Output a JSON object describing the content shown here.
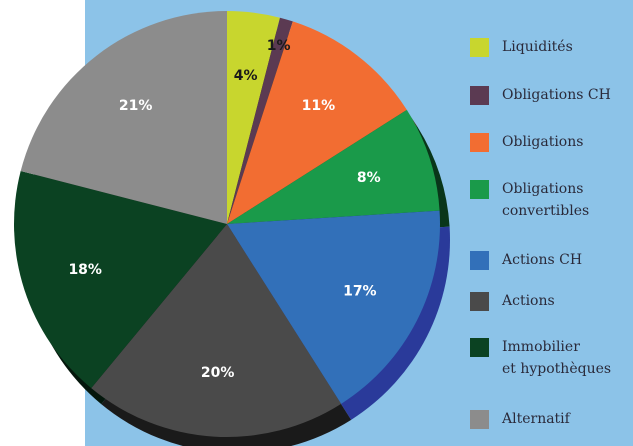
{
  "chart_data": {
    "type": "pie",
    "categories": [
      "Liquidités",
      "Obligations CH",
      "Obligations",
      "Obligations\nconvertibles",
      "Actions CH",
      "Actions",
      "Immobilier\net hypothèques",
      "Alternatif"
    ],
    "values": [
      4,
      1,
      11,
      8,
      17,
      20,
      18,
      21
    ],
    "value_labels": [
      "4%",
      "1%",
      "11%",
      "8%",
      "17%",
      "20%",
      "18%",
      "21%"
    ],
    "colors": [
      "#c8d62e",
      "#5b3a52",
      "#f26d32",
      "#1a9a4a",
      "#3270b9",
      "#4a4a4a",
      "#0b4222",
      "#8c8c8c"
    ],
    "legend": "right"
  }
}
